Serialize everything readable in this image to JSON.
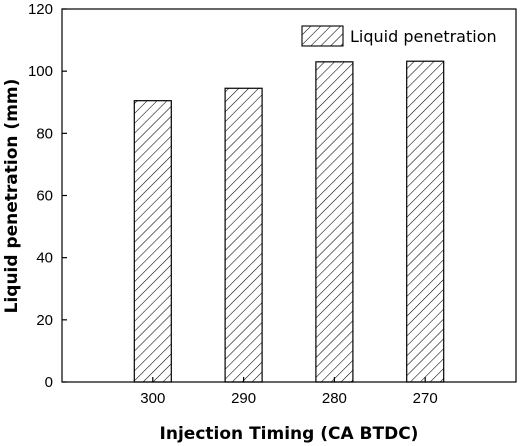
{
  "chart_data": {
    "type": "bar",
    "categories": [
      "300",
      "290",
      "280",
      "270"
    ],
    "series": [
      {
        "name": "Liquid penetration",
        "values": [
          90.5,
          94.5,
          103,
          103.2
        ]
      }
    ],
    "xlabel": "Injection Timing (CA BTDC)",
    "ylabel": "Liquid penetration (mm)",
    "ylim": [
      0,
      120
    ],
    "yticks": [
      0,
      20,
      40,
      60,
      80,
      100,
      120
    ],
    "grid": false,
    "legend_position": "top-right",
    "bar_fill": "hatched",
    "colors": {
      "bar_stroke": "#000000",
      "hatch": "#000000",
      "background": "#ffffff"
    }
  }
}
